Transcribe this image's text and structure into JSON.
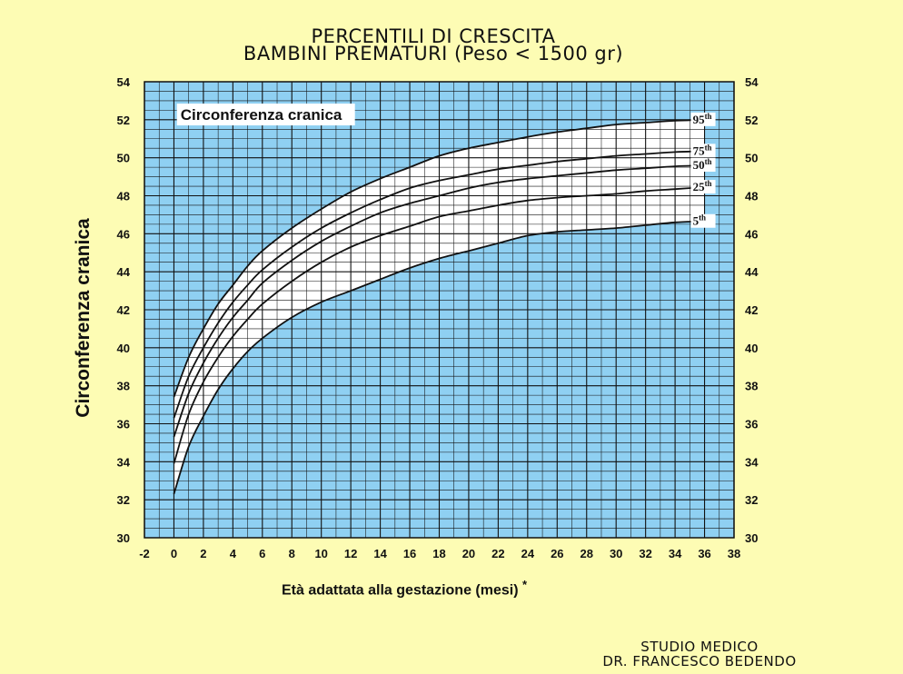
{
  "header": {
    "title_line1": "PERCENTILI DI CRESCITA",
    "title_line2": "BAMBINI PREMATURI (Peso < 1500 gr)"
  },
  "footer": {
    "line1": "STUDIO MEDICO",
    "line2": "DR. FRANCESCO BEDENDO"
  },
  "colors": {
    "background": "#fdfcb4",
    "plot_area": "#8fd0f2",
    "band": "#ffffff",
    "grid": "#111111"
  },
  "chart_data": {
    "type": "line",
    "title": "Circonferenza cranica",
    "xlabel": "Età adattata alla gestazione (mesi)",
    "xlabel_mark": "*",
    "ylabel": "Circonferenza cranica",
    "xlim": [
      -2,
      38
    ],
    "ylim": [
      30,
      54
    ],
    "x_ticks": [
      -2,
      0,
      2,
      4,
      6,
      8,
      10,
      12,
      14,
      16,
      18,
      20,
      22,
      24,
      26,
      28,
      30,
      32,
      34,
      36,
      38
    ],
    "y_ticks": [
      30,
      32,
      34,
      36,
      38,
      40,
      42,
      44,
      46,
      48,
      50,
      52,
      54
    ],
    "grid": true,
    "x": [
      0,
      1,
      2,
      3,
      4,
      5,
      6,
      8,
      10,
      12,
      14,
      16,
      18,
      20,
      22,
      24,
      26,
      28,
      30,
      32,
      34,
      36
    ],
    "series": [
      {
        "name": "95",
        "suffix": "th",
        "values": [
          37.4,
          39.5,
          41.0,
          42.3,
          43.3,
          44.3,
          45.1,
          46.3,
          47.3,
          48.2,
          48.9,
          49.5,
          50.1,
          50.5,
          50.8,
          51.1,
          51.35,
          51.55,
          51.75,
          51.85,
          51.95,
          52.0
        ]
      },
      {
        "name": "75",
        "suffix": "th",
        "values": [
          36.3,
          38.5,
          40.0,
          41.3,
          42.4,
          43.3,
          44.1,
          45.3,
          46.3,
          47.1,
          47.8,
          48.4,
          48.8,
          49.1,
          49.4,
          49.6,
          49.8,
          49.95,
          50.1,
          50.2,
          50.3,
          50.35
        ]
      },
      {
        "name": "50",
        "suffix": "th",
        "values": [
          35.3,
          37.6,
          39.2,
          40.5,
          41.6,
          42.5,
          43.4,
          44.6,
          45.6,
          46.4,
          47.1,
          47.6,
          48.0,
          48.4,
          48.7,
          48.9,
          49.05,
          49.2,
          49.35,
          49.45,
          49.55,
          49.6
        ]
      },
      {
        "name": "25",
        "suffix": "th",
        "values": [
          33.9,
          36.5,
          38.2,
          39.5,
          40.6,
          41.5,
          42.3,
          43.5,
          44.5,
          45.3,
          45.9,
          46.4,
          46.9,
          47.2,
          47.5,
          47.75,
          47.9,
          48.0,
          48.1,
          48.25,
          48.35,
          48.45
        ]
      },
      {
        "name": "5",
        "suffix": "th",
        "values": [
          32.3,
          34.8,
          36.4,
          37.8,
          38.9,
          39.8,
          40.5,
          41.6,
          42.4,
          43.0,
          43.6,
          44.2,
          44.7,
          45.1,
          45.5,
          45.9,
          46.1,
          46.2,
          46.3,
          46.45,
          46.6,
          46.65
        ]
      }
    ]
  }
}
